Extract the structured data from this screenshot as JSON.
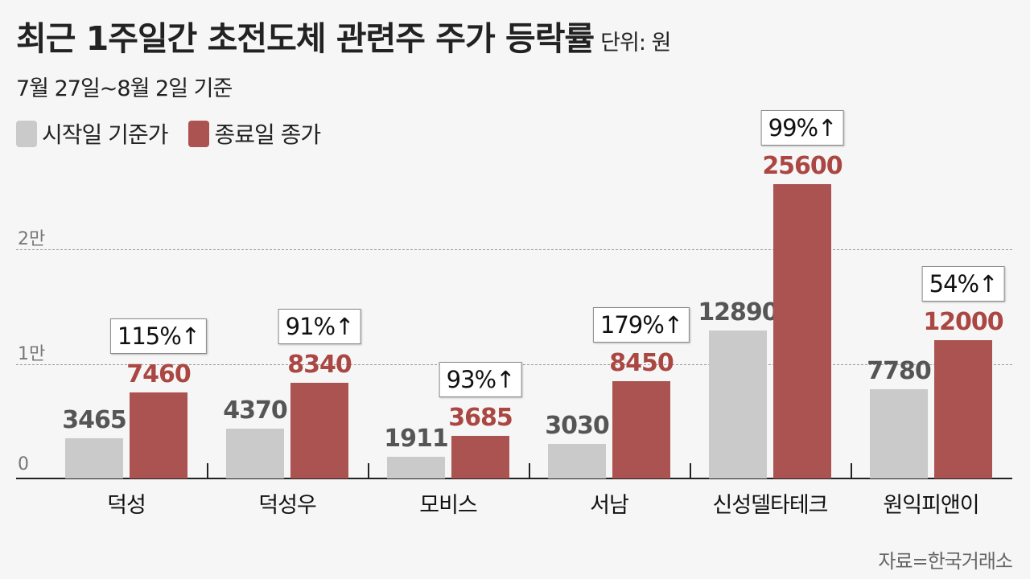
{
  "header": {
    "title": "최근 1주일간 초전도체 관련주 주가 등락률",
    "unit": "단위: 원",
    "subtitle": "7월 27일~8월 2일 기준"
  },
  "legend": [
    {
      "label": "시작일 기준가",
      "color": "#cacaca"
    },
    {
      "label": "종료일 종가",
      "color": "#ab5350"
    }
  ],
  "yaxis": {
    "ticks": [
      {
        "label": "0",
        "value": 0
      },
      {
        "label": "1만",
        "value": 10000
      },
      {
        "label": "2만",
        "value": 20000
      }
    ]
  },
  "source": "자료=한국거래소",
  "chart_data": {
    "type": "bar",
    "title": "최근 1주일간 초전도체 관련주 주가 등락률",
    "subtitle": "7월 27일~8월 2일 기준",
    "unit": "원",
    "categories": [
      "덕성",
      "덕성우",
      "모비스",
      "서남",
      "신성델타테크",
      "원익피앤이"
    ],
    "series": [
      {
        "name": "시작일 기준가",
        "color": "#cacaca",
        "values": [
          3465,
          4370,
          1911,
          3030,
          12890,
          7780
        ]
      },
      {
        "name": "종료일 종가",
        "color": "#ab5350",
        "values": [
          7460,
          8340,
          3685,
          8450,
          25600,
          12000
        ]
      }
    ],
    "annotations": [
      "115%↑",
      "91%↑",
      "93%↑",
      "179%↑",
      "99%↑",
      "54%↑"
    ],
    "xlabel": "",
    "ylabel": "",
    "ytick_labels": [
      "0",
      "1만",
      "2만"
    ],
    "ylim": [
      0,
      26000
    ],
    "grid": true,
    "legend_position": "top-left",
    "source": "자료=한국거래소"
  }
}
